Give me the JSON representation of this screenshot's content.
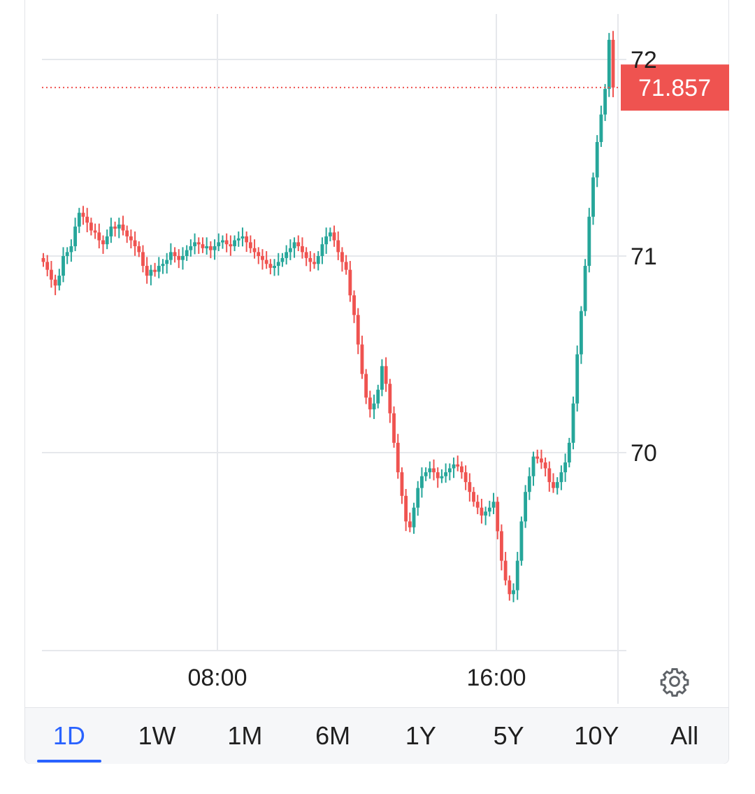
{
  "chart_data": {
    "type": "candlestick",
    "y_ticks": [
      "72",
      "71",
      "70"
    ],
    "ylim": [
      69.0,
      72.3
    ],
    "x_ticks": [
      "08:00",
      "16:00"
    ],
    "last_price": "71.857",
    "up_color": "#26a69a",
    "down_color": "#ef5350",
    "grid": true,
    "close_series": [
      70.97,
      70.93,
      70.88,
      70.85,
      70.9,
      71.0,
      71.02,
      71.05,
      71.15,
      71.22,
      71.2,
      71.17,
      71.13,
      71.12,
      71.08,
      71.06,
      71.1,
      71.15,
      71.14,
      71.16,
      71.13,
      71.1,
      71.08,
      71.05,
      71.02,
      70.95,
      70.9,
      70.93,
      70.92,
      70.95,
      70.96,
      70.98,
      71.02,
      71.0,
      70.98,
      71.0,
      71.03,
      71.05,
      71.07,
      71.06,
      71.04,
      71.05,
      71.03,
      71.05,
      71.07,
      71.08,
      71.06,
      71.05,
      71.08,
      71.09,
      71.1,
      71.07,
      71.04,
      71.02,
      71.0,
      70.98,
      70.96,
      70.94,
      70.95,
      70.97,
      70.99,
      71.02,
      71.04,
      71.07,
      71.05,
      71.02,
      70.99,
      70.97,
      70.96,
      71.0,
      71.06,
      71.1,
      71.12,
      71.08,
      71.02,
      70.97,
      70.93,
      70.8,
      70.7,
      70.55,
      70.4,
      70.28,
      70.22,
      70.25,
      70.32,
      70.44,
      70.35,
      70.2,
      70.05,
      69.9,
      69.78,
      69.65,
      69.62,
      69.72,
      69.82,
      69.88,
      69.9,
      69.92,
      69.9,
      69.87,
      69.88,
      69.9,
      69.92,
      69.94,
      69.93,
      69.9,
      69.85,
      69.8,
      69.75,
      69.72,
      69.68,
      69.7,
      69.72,
      69.75,
      69.6,
      69.45,
      69.35,
      69.28,
      69.3,
      69.45,
      69.65,
      69.8,
      69.88,
      69.98,
      69.97,
      69.95,
      69.92,
      69.85,
      69.82,
      69.85,
      69.9,
      69.95,
      70.05,
      70.25,
      70.5,
      70.72,
      70.95,
      71.2,
      71.4,
      71.58,
      71.72,
      71.85,
      72.1,
      71.857
    ]
  },
  "range_tabs": [
    "1D",
    "1W",
    "1M",
    "6M",
    "1Y",
    "5Y",
    "10Y",
    "All"
  ],
  "active_range": "1D",
  "icons": {
    "settings": "gear-icon"
  }
}
